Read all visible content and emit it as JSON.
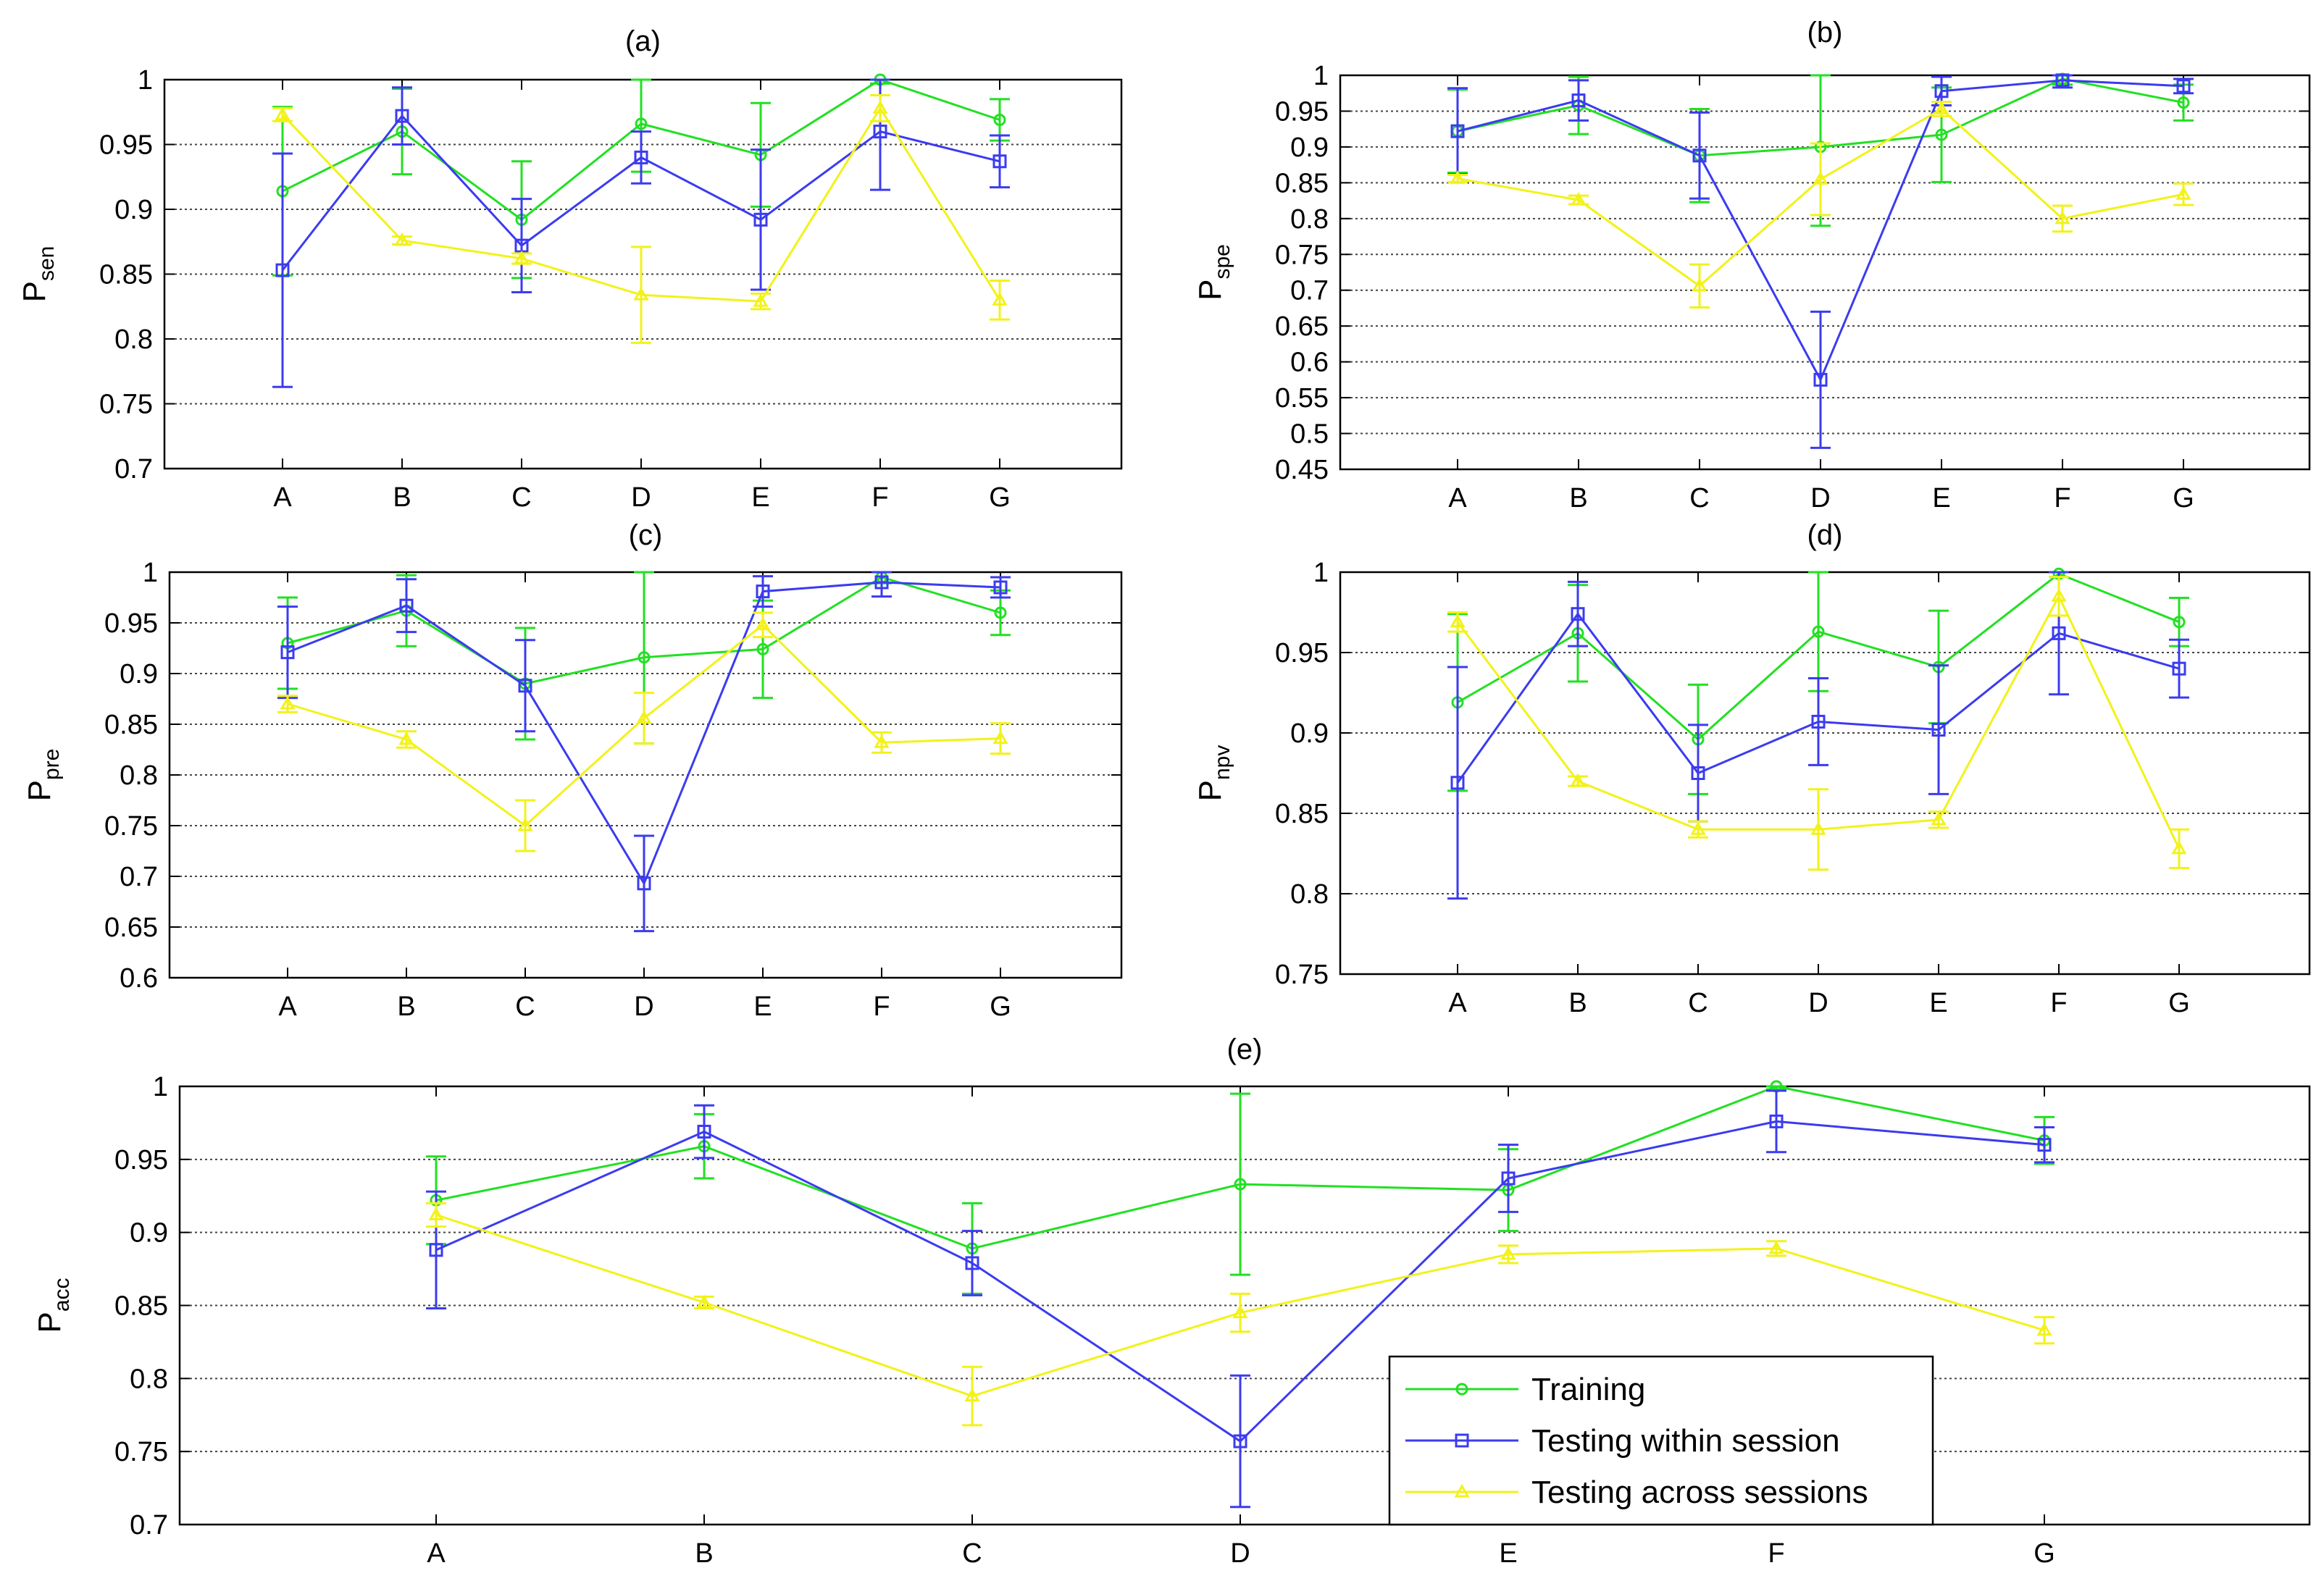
{
  "chart_data": [
    {
      "id": "a",
      "type": "line",
      "title": "(a)",
      "ylabel_main": "P",
      "ylabel_sub": "sen",
      "categories": [
        "A",
        "B",
        "C",
        "D",
        "E",
        "F",
        "G"
      ],
      "ylim": [
        0.7,
        1
      ],
      "yticks": [
        0.7,
        0.75,
        0.8,
        0.85,
        0.9,
        0.95,
        1
      ],
      "ytick_labels": [
        "0.7",
        "0.75",
        "0.8",
        "0.85",
        "0.9",
        "0.95",
        "1"
      ],
      "series": [
        {
          "name": "Training",
          "values": [
            0.914,
            0.96,
            0.892,
            0.966,
            0.942,
            1.0,
            0.969
          ],
          "errors": [
            0.065,
            0.033,
            0.045,
            0.037,
            0.04,
            0.003,
            0.016
          ]
        },
        {
          "name": "Testing within session",
          "values": [
            0.853,
            0.972,
            0.872,
            0.94,
            0.892,
            0.96,
            0.937
          ],
          "errors": [
            0.09,
            0.022,
            0.036,
            0.02,
            0.054,
            0.045,
            0.02
          ]
        },
        {
          "name": "Testing across sessions",
          "values": [
            0.973,
            0.876,
            0.862,
            0.834,
            0.829,
            0.978,
            0.83
          ],
          "errors": [
            0.005,
            0.003,
            0.004,
            0.037,
            0.006,
            0.01,
            0.015
          ]
        }
      ]
    },
    {
      "id": "b",
      "type": "line",
      "title": "(b)",
      "ylabel_main": "P",
      "ylabel_sub": "spe",
      "categories": [
        "A",
        "B",
        "C",
        "D",
        "E",
        "F",
        "G"
      ],
      "ylim": [
        0.45,
        1
      ],
      "yticks": [
        0.45,
        0.5,
        0.55,
        0.6,
        0.65,
        0.7,
        0.75,
        0.8,
        0.85,
        0.9,
        0.95,
        1
      ],
      "ytick_labels": [
        "0.45",
        "0.5",
        "0.55",
        "0.6",
        "0.65",
        "0.7",
        "0.75",
        "0.8",
        "0.85",
        "0.9",
        "0.95",
        "1"
      ],
      "series": [
        {
          "name": "Training",
          "values": [
            0.922,
            0.958,
            0.888,
            0.9,
            0.917,
            0.995,
            0.962
          ],
          "errors": [
            0.058,
            0.04,
            0.065,
            0.11,
            0.066,
            0.008,
            0.025
          ]
        },
        {
          "name": "Testing within session",
          "values": [
            0.922,
            0.965,
            0.888,
            0.575,
            0.978,
            0.993,
            0.985
          ],
          "errors": [
            0.06,
            0.028,
            0.06,
            0.095,
            0.02,
            0.01,
            0.01
          ]
        },
        {
          "name": "Testing across sessions",
          "values": [
            0.856,
            0.826,
            0.706,
            0.855,
            0.953,
            0.8,
            0.834
          ],
          "errors": [
            0.005,
            0.006,
            0.03,
            0.05,
            0.01,
            0.018,
            0.015
          ]
        }
      ]
    },
    {
      "id": "c",
      "type": "line",
      "title": "(c)",
      "ylabel_main": "P",
      "ylabel_sub": "pre",
      "categories": [
        "A",
        "B",
        "C",
        "D",
        "E",
        "F",
        "G"
      ],
      "ylim": [
        0.6,
        1
      ],
      "yticks": [
        0.6,
        0.65,
        0.7,
        0.75,
        0.8,
        0.85,
        0.9,
        0.95,
        1
      ],
      "ytick_labels": [
        "0.6",
        "0.65",
        "0.7",
        "0.75",
        "0.8",
        "0.85",
        "0.9",
        "0.95",
        "1"
      ],
      "series": [
        {
          "name": "Training",
          "values": [
            0.93,
            0.962,
            0.89,
            0.916,
            0.924,
            0.995,
            0.96
          ],
          "errors": [
            0.045,
            0.035,
            0.055,
            0.085,
            0.048,
            0.006,
            0.022
          ]
        },
        {
          "name": "Testing within session",
          "values": [
            0.921,
            0.967,
            0.888,
            0.693,
            0.981,
            0.99,
            0.985
          ],
          "errors": [
            0.045,
            0.026,
            0.045,
            0.047,
            0.015,
            0.014,
            0.01
          ]
        },
        {
          "name": "Testing across sessions",
          "values": [
            0.87,
            0.835,
            0.75,
            0.856,
            0.948,
            0.832,
            0.836
          ],
          "errors": [
            0.008,
            0.008,
            0.025,
            0.025,
            0.012,
            0.01,
            0.015
          ]
        }
      ]
    },
    {
      "id": "d",
      "type": "line",
      "title": "(d)",
      "ylabel_main": "P",
      "ylabel_sub": "npv",
      "categories": [
        "A",
        "B",
        "C",
        "D",
        "E",
        "F",
        "G"
      ],
      "ylim": [
        0.75,
        1
      ],
      "yticks": [
        0.75,
        0.8,
        0.85,
        0.9,
        0.95,
        1
      ],
      "ytick_labels": [
        "0.75",
        "0.8",
        "0.85",
        "0.9",
        "0.95",
        "1"
      ],
      "series": [
        {
          "name": "Training",
          "values": [
            0.919,
            0.962,
            0.896,
            0.963,
            0.941,
            0.999,
            0.969
          ],
          "errors": [
            0.055,
            0.03,
            0.034,
            0.037,
            0.035,
            0.002,
            0.015
          ]
        },
        {
          "name": "Testing within session",
          "values": [
            0.869,
            0.974,
            0.875,
            0.907,
            0.902,
            0.962,
            0.94
          ],
          "errors": [
            0.072,
            0.02,
            0.03,
            0.027,
            0.04,
            0.038,
            0.018
          ]
        },
        {
          "name": "Testing across sessions",
          "values": [
            0.969,
            0.87,
            0.84,
            0.84,
            0.846,
            0.985,
            0.828
          ],
          "errors": [
            0.006,
            0.003,
            0.005,
            0.025,
            0.005,
            0.012,
            0.012
          ]
        }
      ]
    },
    {
      "id": "e",
      "type": "line",
      "title": "(e)",
      "ylabel_main": "P",
      "ylabel_sub": "acc",
      "categories": [
        "A",
        "B",
        "C",
        "D",
        "E",
        "F",
        "G"
      ],
      "ylim": [
        0.7,
        1
      ],
      "yticks": [
        0.7,
        0.75,
        0.8,
        0.85,
        0.9,
        0.95,
        1
      ],
      "ytick_labels": [
        "0.7",
        "0.75",
        "0.8",
        "0.85",
        "0.9",
        "0.95",
        "1"
      ],
      "legend": {
        "position": "bottom-right",
        "entries": [
          "Training",
          "Testing within session",
          "Testing across sessions"
        ]
      },
      "series": [
        {
          "name": "Training",
          "values": [
            0.922,
            0.959,
            0.889,
            0.933,
            0.929,
            1.0,
            0.963
          ],
          "errors": [
            0.03,
            0.022,
            0.031,
            0.062,
            0.028,
            0.002,
            0.016
          ]
        },
        {
          "name": "Testing within session",
          "values": [
            0.888,
            0.969,
            0.879,
            0.757,
            0.937,
            0.976,
            0.96
          ],
          "errors": [
            0.04,
            0.018,
            0.022,
            0.045,
            0.023,
            0.021,
            0.012
          ]
        },
        {
          "name": "Testing across sessions",
          "values": [
            0.912,
            0.852,
            0.788,
            0.845,
            0.885,
            0.889,
            0.833
          ],
          "errors": [
            0.008,
            0.004,
            0.02,
            0.013,
            0.006,
            0.005,
            0.009
          ]
        }
      ]
    }
  ],
  "colors": {
    "Training": "#22e022",
    "Testing within session": "#3b3bf0",
    "Testing across sessions": "#f2f21a",
    "grid": "#444444",
    "axis": "#000000"
  }
}
